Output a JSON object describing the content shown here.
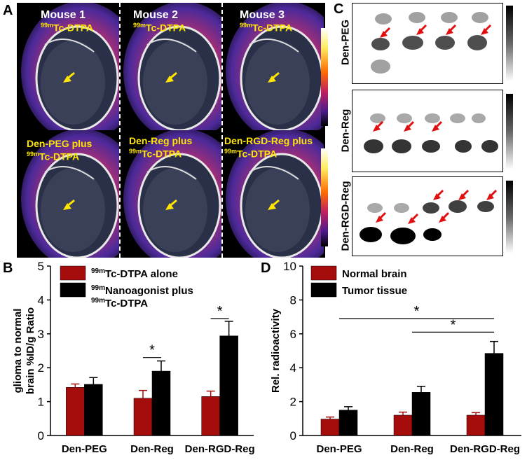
{
  "panels": {
    "a": "A",
    "b": "B",
    "c": "C",
    "d": "D"
  },
  "panel_a": {
    "top_row": [
      {
        "title": "Mouse 1",
        "tracer": "Tc-DTPA",
        "iso": "99m"
      },
      {
        "title": "Mouse 2",
        "tracer": "Tc-DTPA",
        "iso": "99m"
      },
      {
        "title": "Mouse 3",
        "tracer": "Tc-DTPA",
        "iso": "99m"
      }
    ],
    "bottom_row": [
      {
        "line1": "Den-PEG plus",
        "tracer": "Tc-DTPA",
        "iso": "99m"
      },
      {
        "line1": "Den-Reg plus",
        "tracer": "Tc-DTPA",
        "iso": "99m"
      },
      {
        "line1": "Den-RGD-Reg plus",
        "tracer": "Tc-DTPA",
        "iso": "99m"
      }
    ]
  },
  "panel_c": {
    "strips": [
      "Den-PEG",
      "Den-Reg",
      "Den-RGD-Reg"
    ]
  },
  "chart_data": [
    {
      "type": "bar",
      "panel": "B",
      "categories": [
        "Den-PEG",
        "Den-Reg",
        "Den-RGD-Reg"
      ],
      "ylabel": [
        "glioma to normal",
        "brain %ID/g Ratio"
      ],
      "ylim": [
        0,
        5
      ],
      "yticks": [
        "0",
        "1",
        "2",
        "3",
        "4",
        "5"
      ],
      "legend": {
        "position": "top-left"
      },
      "series": [
        {
          "name": "Tc-DTPA alone",
          "iso": "99m",
          "color": "#a50d0d",
          "values": [
            1.42,
            1.1,
            1.15
          ],
          "errors": [
            0.1,
            0.23,
            0.16
          ]
        },
        {
          "name": "Nanoagonist plus",
          "name2": "Tc-DTPA",
          "iso": "99m",
          "color": "#000000",
          "values": [
            1.51,
            1.9,
            2.94
          ],
          "errors": [
            0.2,
            0.3,
            0.43
          ]
        }
      ],
      "significance": [
        {
          "category_index": 1,
          "y": 2.3,
          "label": "*"
        },
        {
          "category_index": 2,
          "y": 3.45,
          "label": "*"
        }
      ]
    },
    {
      "type": "bar",
      "panel": "D",
      "categories": [
        "Den-PEG",
        "Den-Reg",
        "Den-RGD-Reg"
      ],
      "ylabel": "Rel. radioactivity",
      "ylim": [
        0,
        10
      ],
      "yticks": [
        "0",
        "2",
        "4",
        "6",
        "8",
        "10"
      ],
      "legend": {
        "position": "top-left"
      },
      "series": [
        {
          "name": "Normal brain",
          "color": "#a50d0d",
          "values": [
            0.97,
            1.2,
            1.2
          ],
          "errors": [
            0.12,
            0.18,
            0.15
          ]
        },
        {
          "name": "Tumor tissue",
          "color": "#000000",
          "values": [
            1.5,
            2.55,
            4.85
          ],
          "errors": [
            0.2,
            0.35,
            0.7
          ]
        }
      ],
      "significance": [
        {
          "from_category": 0,
          "to_category": 2,
          "y": 6.9,
          "label": "*"
        },
        {
          "from_category": 1,
          "to_category": 2,
          "y": 6.1,
          "label": "*"
        }
      ]
    }
  ]
}
